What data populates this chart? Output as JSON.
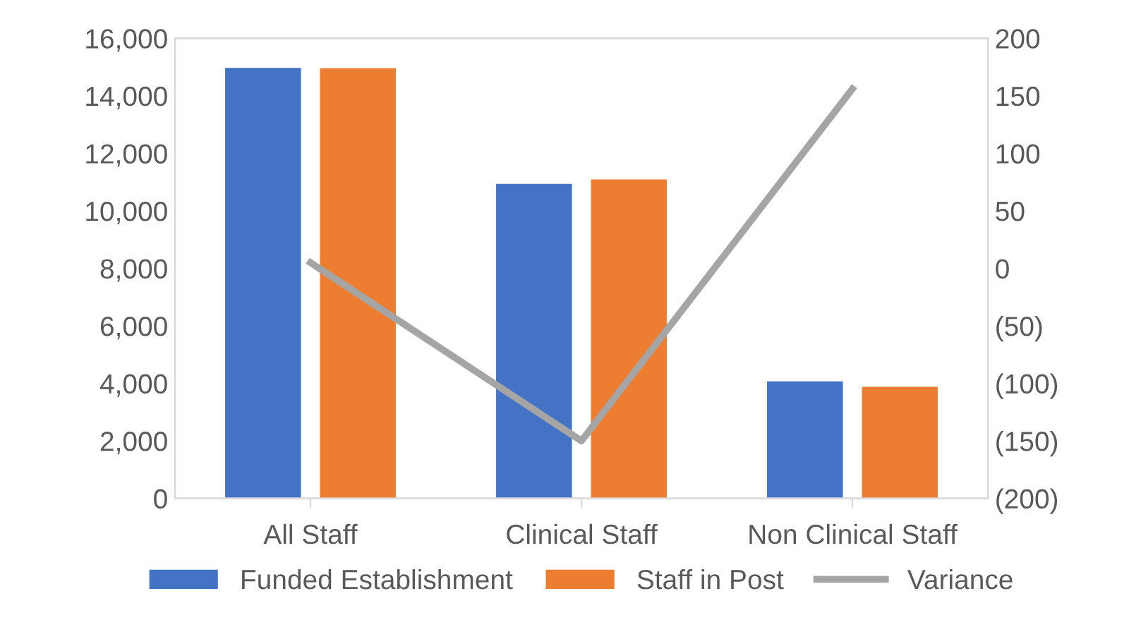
{
  "chart_data": {
    "type": "bar",
    "categories": [
      "All Staff",
      "Clinical Staff",
      "Non Clinical Staff"
    ],
    "series": [
      {
        "name": "Funded Establishment",
        "color": "#4472c4",
        "values": [
          14970,
          10940,
          4070
        ]
      },
      {
        "name": "Staff in Post",
        "color": "#ed7d31",
        "values": [
          14960,
          11090,
          3880
        ]
      },
      {
        "name": "Variance",
        "color": "#a5a5a5",
        "type": "line",
        "axis": "y2",
        "values": [
          5,
          -150,
          156
        ]
      }
    ],
    "ylim": [
      0,
      16000
    ],
    "yticks": [
      0,
      {
        "value": 2000,
        "label": "2,000"
      },
      {
        "value": 4000,
        "label": "4,000"
      },
      {
        "value": 6000,
        "label": "6,000"
      },
      {
        "value": 8000,
        "label": "8,000"
      },
      {
        "value": 10000,
        "label": "10,000"
      },
      {
        "value": 12000,
        "label": "12,000"
      },
      {
        "value": 14000,
        "label": "14,000"
      },
      {
        "value": 16000,
        "label": "16,000"
      }
    ],
    "y2lim": [
      -200,
      200
    ],
    "y2ticks": [
      {
        "value": -200,
        "label": "(200)"
      },
      {
        "value": -150,
        "label": "(150)"
      },
      {
        "value": -100,
        "label": "(100)"
      },
      {
        "value": -50,
        "label": "(50)"
      },
      0,
      50,
      100,
      150,
      200
    ],
    "legend": "bottom",
    "grid": false
  }
}
